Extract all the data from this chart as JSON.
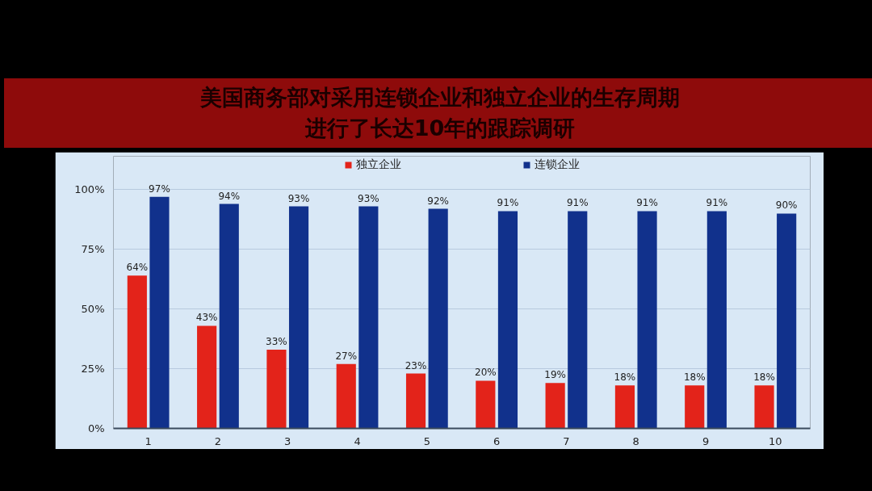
{
  "chart_data": {
    "type": "bar",
    "title": "美国商务部对采用连锁企业和独立企业的生存周期进行了长达10年的跟踪调研",
    "categories": [
      "1",
      "2",
      "3",
      "4",
      "5",
      "6",
      "7",
      "8",
      "9",
      "10"
    ],
    "series": [
      {
        "name": "独立企业",
        "color": "#e3231a",
        "values": [
          64,
          43,
          33,
          27,
          23,
          20,
          19,
          18,
          18,
          18
        ],
        "value_labels": [
          "64%",
          "43%",
          "33%",
          "27%",
          "23%",
          "20%",
          "19%",
          "18%",
          "18%",
          "18%"
        ]
      },
      {
        "name": "连锁企业",
        "color": "#11318c",
        "values": [
          97,
          94,
          93,
          93,
          92,
          91,
          91,
          91,
          91,
          90
        ],
        "value_labels": [
          "97%",
          "94%",
          "93%",
          "93%",
          "92%",
          "91%",
          "91%",
          "91%",
          "91%",
          "90%"
        ]
      }
    ],
    "ylim": [
      0,
      114
    ],
    "yticks": [
      {
        "value": 0,
        "label": "0%"
      },
      {
        "value": 25,
        "label": "25%"
      },
      {
        "value": 50,
        "label": "50%"
      },
      {
        "value": 75,
        "label": "75%"
      },
      {
        "value": 100,
        "label": "100%"
      }
    ],
    "grid": "y",
    "legend": "top"
  }
}
